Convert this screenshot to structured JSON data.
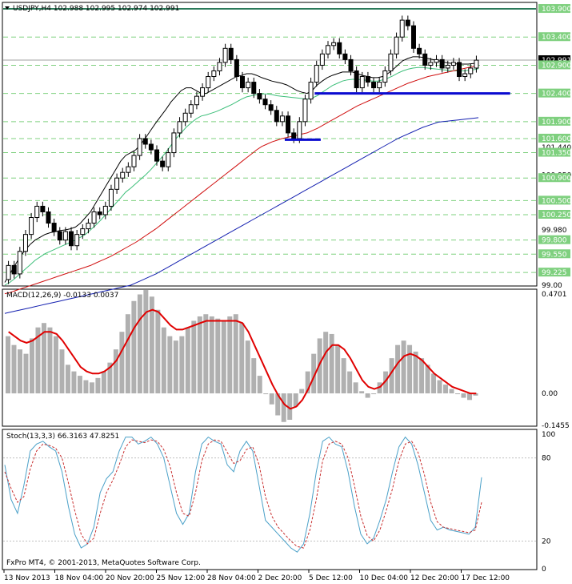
{
  "chart_data": [
    {
      "type": "candlestick",
      "title": "USDJPY,H4",
      "ohlc": "102.988 102.995 102.974 102.991",
      "ylim": [
        99.0,
        104.0
      ],
      "price_ticks": [
        "103.900",
        "103.400",
        "102.991",
        "102.900",
        "102.400",
        "101.900",
        "101.600",
        "101.440",
        "101.350",
        "100.950",
        "100.900",
        "100.500",
        "100.250",
        "99.980",
        "99.800",
        "99.550",
        "99.225",
        "99.00"
      ],
      "hlines": [
        103.9,
        103.4,
        102.9,
        102.4,
        101.9,
        101.6,
        101.35,
        100.9,
        100.5,
        100.25,
        99.8,
        99.55,
        99.225
      ],
      "current_price": 102.991,
      "support_lines": [
        {
          "from": 62,
          "to": 98,
          "y": 102.4
        },
        {
          "from": 56,
          "to": 60,
          "y": 101.58
        }
      ],
      "moving_averages": [
        {
          "color": "#000000",
          "values": [
            99.05,
            99.2,
            99.35,
            99.5,
            99.62,
            99.72,
            99.8,
            99.85,
            99.9,
            99.93,
            99.95,
            99.97,
            99.98,
            100.0,
            100.03,
            100.1,
            100.2,
            100.3,
            100.45,
            100.6,
            100.75,
            100.9,
            101.05,
            101.2,
            101.3,
            101.35,
            101.4,
            101.5,
            101.62,
            101.75,
            101.88,
            102.0,
            102.12,
            102.25,
            102.35,
            102.45,
            102.5,
            102.5,
            102.45,
            102.4,
            102.4,
            102.45,
            102.5,
            102.55,
            102.6,
            102.65,
            102.7,
            102.72,
            102.75,
            102.75,
            102.72,
            102.68,
            102.65,
            102.62,
            102.6,
            102.58,
            102.55,
            102.5,
            102.45,
            102.42,
            102.4,
            102.45,
            102.55,
            102.62,
            102.68,
            102.72,
            102.75,
            102.78,
            102.78,
            102.78,
            102.75,
            102.72,
            102.7,
            102.68,
            102.68,
            102.7,
            102.75,
            102.82,
            102.9,
            102.98,
            103.02,
            103.05,
            103.05,
            103.04,
            103.02,
            103.0,
            102.98,
            102.96,
            102.94,
            102.93,
            102.92,
            102.92,
            102.92,
            102.93,
            102.93
          ]
        },
        {
          "color": "#3dbf7a",
          "values": [
            99.0,
            99.05,
            99.12,
            99.2,
            99.28,
            99.36,
            99.44,
            99.5,
            99.56,
            99.6,
            99.64,
            99.68,
            99.72,
            99.76,
            99.8,
            99.85,
            99.9,
            99.98,
            100.06,
            100.15,
            100.25,
            100.35,
            100.45,
            100.55,
            100.65,
            100.72,
            100.8,
            100.88,
            100.96,
            101.05,
            101.15,
            101.25,
            101.36,
            101.48,
            101.6,
            101.7,
            101.8,
            101.88,
            101.95,
            102.0,
            102.02,
            102.05,
            102.08,
            102.12,
            102.16,
            102.2,
            102.25,
            102.3,
            102.34,
            102.36,
            102.38,
            102.39,
            102.39,
            102.38,
            102.36,
            102.35,
            102.34,
            102.33,
            102.32,
            102.31,
            102.3,
            102.32,
            102.36,
            102.42,
            102.48,
            102.54,
            102.58,
            102.62,
            102.64,
            102.65,
            102.65,
            102.64,
            102.63,
            102.62,
            102.62,
            102.64,
            102.67,
            102.71,
            102.76,
            102.8,
            102.83,
            102.85,
            102.86,
            102.86,
            102.85,
            102.84,
            102.83,
            102.82,
            102.81,
            102.8,
            102.8,
            102.8,
            102.81,
            102.82,
            102.84
          ]
        },
        {
          "color": "#d01010",
          "values": [
            98.85,
            98.87,
            98.9,
            98.93,
            98.96,
            98.99,
            99.02,
            99.05,
            99.08,
            99.11,
            99.14,
            99.17,
            99.2,
            99.23,
            99.26,
            99.29,
            99.32,
            99.35,
            99.39,
            99.43,
            99.47,
            99.51,
            99.56,
            99.61,
            99.66,
            99.71,
            99.76,
            99.82,
            99.88,
            99.94,
            100.0,
            100.07,
            100.14,
            100.21,
            100.28,
            100.35,
            100.42,
            100.49,
            100.56,
            100.63,
            100.7,
            100.77,
            100.84,
            100.91,
            100.98,
            101.05,
            101.12,
            101.19,
            101.26,
            101.33,
            101.4,
            101.46,
            101.5,
            101.54,
            101.57,
            101.6,
            101.62,
            101.64,
            101.66,
            101.68,
            101.7,
            101.74,
            101.78,
            101.83,
            101.88,
            101.93,
            101.98,
            102.03,
            102.08,
            102.13,
            102.18,
            102.22,
            102.26,
            102.3,
            102.34,
            102.38,
            102.42,
            102.46,
            102.5,
            102.54,
            102.58,
            102.61,
            102.64,
            102.67,
            102.7,
            102.72,
            102.74,
            102.76,
            102.78,
            102.8,
            102.82,
            102.84,
            102.86,
            102.88,
            102.9
          ]
        },
        {
          "color": "#1420b0",
          "values": [
            98.5,
            98.52,
            98.54,
            98.56,
            98.58,
            98.6,
            98.62,
            98.64,
            98.66,
            98.68,
            98.7,
            98.72,
            98.74,
            98.76,
            98.78,
            98.8,
            98.82,
            98.84,
            98.86,
            98.88,
            98.9,
            98.92,
            98.94,
            98.96,
            98.98,
            99.0,
            99.04,
            99.08,
            99.12,
            99.16,
            99.2,
            99.25,
            99.3,
            99.35,
            99.4,
            99.45,
            99.5,
            99.55,
            99.6,
            99.65,
            99.7,
            99.75,
            99.8,
            99.85,
            99.9,
            99.95,
            100.0,
            100.05,
            100.1,
            100.15,
            100.2,
            100.25,
            100.3,
            100.35,
            100.4,
            100.45,
            100.5,
            100.55,
            100.6,
            100.65,
            100.7,
            100.75,
            100.8,
            100.85,
            100.9,
            100.95,
            101.0,
            101.05,
            101.1,
            101.15,
            101.2,
            101.25,
            101.3,
            101.35,
            101.4,
            101.45,
            101.5,
            101.55,
            101.6,
            101.64,
            101.68,
            101.72,
            101.76,
            101.8,
            101.83,
            101.86,
            101.89,
            101.9,
            101.91,
            101.92,
            101.93,
            101.94,
            101.95,
            101.96,
            101.97
          ]
        }
      ],
      "closes": [
        99.35,
        99.2,
        99.6,
        99.9,
        100.2,
        100.4,
        100.3,
        100.1,
        99.95,
        99.8,
        99.95,
        99.7,
        99.9,
        100.0,
        100.1,
        100.3,
        100.25,
        100.4,
        100.7,
        100.9,
        101.0,
        101.1,
        101.3,
        101.6,
        101.5,
        101.4,
        101.2,
        101.1,
        101.35,
        101.7,
        101.9,
        102.05,
        102.2,
        102.35,
        102.5,
        102.7,
        102.8,
        102.95,
        103.2,
        103.0,
        102.7,
        102.5,
        102.6,
        102.4,
        102.3,
        102.2,
        102.1,
        101.9,
        102.0,
        101.7,
        101.6,
        101.9,
        102.3,
        102.6,
        102.9,
        103.1,
        103.25,
        103.3,
        103.1,
        103.0,
        102.8,
        102.5,
        102.7,
        102.6,
        102.5,
        102.6,
        102.8,
        103.1,
        103.4,
        103.7,
        103.6,
        103.2,
        103.1,
        102.9,
        102.95,
        103.0,
        102.85,
        102.9,
        102.95,
        102.7,
        102.75,
        102.85,
        102.99
      ],
      "opens": [
        99.1,
        99.35,
        99.2,
        99.6,
        99.9,
        100.2,
        100.4,
        100.3,
        100.1,
        99.95,
        99.8,
        99.95,
        99.7,
        99.9,
        100.0,
        100.1,
        100.3,
        100.25,
        100.4,
        100.7,
        100.9,
        101.0,
        101.1,
        101.3,
        101.6,
        101.5,
        101.4,
        101.2,
        101.1,
        101.35,
        101.7,
        101.9,
        102.05,
        102.2,
        102.35,
        102.5,
        102.7,
        102.8,
        102.95,
        103.2,
        103.0,
        102.7,
        102.5,
        102.6,
        102.4,
        102.3,
        102.2,
        102.1,
        101.9,
        102.0,
        101.7,
        101.6,
        101.9,
        102.3,
        102.6,
        102.9,
        103.1,
        103.25,
        103.3,
        103.1,
        103.0,
        102.8,
        102.5,
        102.7,
        102.6,
        102.5,
        102.6,
        102.8,
        103.1,
        103.4,
        103.7,
        103.6,
        103.2,
        103.1,
        102.9,
        102.95,
        103.0,
        102.85,
        102.9,
        102.95,
        102.7,
        102.75,
        102.85
      ]
    },
    {
      "type": "bar",
      "title": "MACD(12,26,9) -0.0133 0.0037",
      "ylim": [
        -0.1455,
        0.4701
      ],
      "tick_labels": [
        "0.4701",
        "0.00",
        "-0.1455"
      ],
      "histogram": [
        0.26,
        0.22,
        0.2,
        0.18,
        0.25,
        0.3,
        0.32,
        0.3,
        0.26,
        0.2,
        0.13,
        0.1,
        0.08,
        0.06,
        0.05,
        0.07,
        0.1,
        0.14,
        0.2,
        0.28,
        0.36,
        0.42,
        0.45,
        0.47,
        0.44,
        0.38,
        0.3,
        0.26,
        0.24,
        0.26,
        0.3,
        0.33,
        0.35,
        0.36,
        0.35,
        0.34,
        0.33,
        0.35,
        0.36,
        0.32,
        0.24,
        0.16,
        0.08,
        0.0,
        -0.05,
        -0.1,
        -0.13,
        -0.12,
        -0.06,
        0.02,
        0.1,
        0.18,
        0.25,
        0.28,
        0.27,
        0.22,
        0.16,
        0.1,
        0.05,
        0.01,
        -0.02,
        0.0,
        0.05,
        0.1,
        0.16,
        0.22,
        0.24,
        0.22,
        0.19,
        0.16,
        0.13,
        0.09,
        0.06,
        0.04,
        0.02,
        0.0,
        -0.02,
        -0.03,
        -0.01
      ],
      "signal": [
        0.28,
        0.26,
        0.24,
        0.23,
        0.24,
        0.26,
        0.28,
        0.28,
        0.27,
        0.24,
        0.2,
        0.16,
        0.12,
        0.1,
        0.09,
        0.09,
        0.1,
        0.12,
        0.15,
        0.2,
        0.25,
        0.3,
        0.34,
        0.37,
        0.38,
        0.37,
        0.34,
        0.31,
        0.29,
        0.29,
        0.3,
        0.31,
        0.32,
        0.33,
        0.33,
        0.33,
        0.33,
        0.33,
        0.33,
        0.32,
        0.28,
        0.22,
        0.16,
        0.1,
        0.04,
        -0.01,
        -0.05,
        -0.07,
        -0.06,
        -0.03,
        0.02,
        0.08,
        0.14,
        0.19,
        0.22,
        0.22,
        0.2,
        0.16,
        0.11,
        0.06,
        0.03,
        0.02,
        0.03,
        0.06,
        0.1,
        0.14,
        0.17,
        0.18,
        0.17,
        0.15,
        0.12,
        0.09,
        0.07,
        0.05,
        0.03,
        0.02,
        0.01,
        0.0,
        0.0
      ]
    },
    {
      "type": "line",
      "title": "Stoch(13,3,3) 66.3163 47.8251",
      "ylim": [
        0,
        100
      ],
      "tick_labels": [
        "100",
        "80",
        "20",
        "0"
      ],
      "series": [
        {
          "color": "#4aa0c8",
          "values": [
            75,
            50,
            40,
            60,
            85,
            90,
            92,
            88,
            85,
            70,
            45,
            25,
            15,
            18,
            30,
            55,
            65,
            70,
            85,
            95,
            95,
            90,
            92,
            95,
            90,
            80,
            60,
            40,
            32,
            40,
            70,
            90,
            95,
            92,
            90,
            75,
            70,
            85,
            92,
            85,
            60,
            35,
            30,
            25,
            20,
            15,
            12,
            18,
            40,
            70,
            92,
            95,
            90,
            88,
            70,
            45,
            25,
            18,
            22,
            35,
            50,
            70,
            88,
            95,
            90,
            75,
            55,
            35,
            28,
            30,
            28,
            27,
            26,
            25,
            30,
            66
          ]
        },
        {
          "color": "#c83030",
          "values": [
            70,
            58,
            48,
            52,
            72,
            85,
            90,
            89,
            87,
            80,
            62,
            42,
            25,
            18,
            22,
            40,
            55,
            64,
            75,
            88,
            93,
            92,
            91,
            93,
            92,
            86,
            74,
            55,
            40,
            38,
            55,
            78,
            90,
            93,
            92,
            84,
            76,
            78,
            86,
            88,
            75,
            52,
            38,
            30,
            25,
            20,
            16,
            15,
            28,
            50,
            78,
            90,
            92,
            90,
            80,
            60,
            38,
            24,
            20,
            28,
            42,
            58,
            78,
            90,
            92,
            84,
            68,
            48,
            34,
            30,
            29,
            28,
            27,
            26,
            28,
            48
          ]
        }
      ]
    }
  ],
  "time_axis": [
    "13 Nov 2013",
    "18 Nov 04:00",
    "20 Nov 20:00",
    "25 Nov 12:00",
    "28 Nov 04:00",
    "2 Dec 20:00",
    "5 Dec 12:00",
    "10 Dec 04:00",
    "12 Dec 20:00",
    "17 Dec 12:00"
  ],
  "copyright": "FxPro MT4, © 2001-2013, MetaQuotes Software Corp.",
  "colors": {
    "grid": "#7fd07f",
    "bull": "#000000",
    "bear": "#000000",
    "macd_hist": "#b0b0b0",
    "macd_signal": "#e00000",
    "tag_bg": "#000000"
  }
}
